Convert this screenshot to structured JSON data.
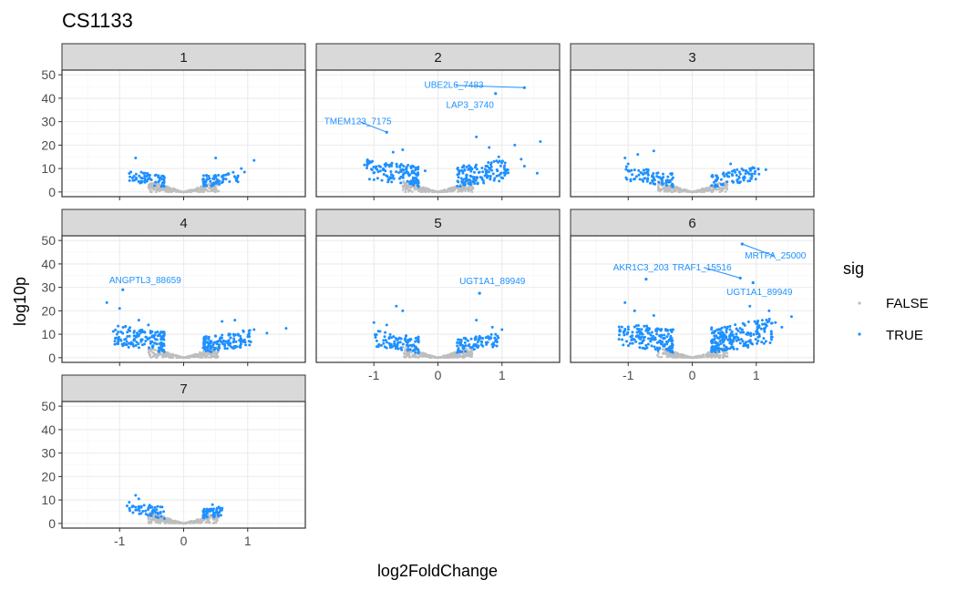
{
  "chart_data": {
    "type": "scatter",
    "title": "CS1133",
    "xlabel": "log2FoldChange",
    "ylabel": "log10p",
    "xlim": [
      -1.9,
      1.9
    ],
    "ylim": [
      -2,
      52
    ],
    "x_ticks": [
      -1,
      0,
      1
    ],
    "y_ticks": [
      0,
      10,
      20,
      30,
      40,
      50
    ],
    "grid": true,
    "legend": {
      "title": "sig",
      "position": "right",
      "entries": [
        {
          "label": "FALSE",
          "color": "#bebebe"
        },
        {
          "label": "TRUE",
          "color": "#1e90ff"
        }
      ]
    },
    "colors": {
      "FALSE": "#bebebe",
      "TRUE": "#1e90ff",
      "strip_bg": "#d9d9d9",
      "grid": "#ebebeb"
    },
    "facets": [
      {
        "label": "1",
        "spread": [
          0.85,
          0.85
        ],
        "height": [
          5,
          5
        ],
        "sig_count": [
          65,
          65
        ],
        "outliers": [
          [
            -0.75,
            14.5
          ],
          [
            0.5,
            14.5
          ],
          [
            0.9,
            10
          ],
          [
            1.1,
            13.5
          ],
          [
            0.95,
            8.5
          ]
        ],
        "labels": []
      },
      {
        "label": "2",
        "spread": [
          1.15,
          1.1
        ],
        "height": [
          9,
          9
        ],
        "sig_count": [
          140,
          140
        ],
        "outliers": [
          [
            -1.1,
            12
          ],
          [
            -0.7,
            17
          ],
          [
            -0.55,
            18
          ],
          [
            -0.2,
            9
          ],
          [
            0.6,
            23.5
          ],
          [
            0.8,
            19
          ],
          [
            1.3,
            14
          ],
          [
            1.35,
            11
          ],
          [
            1.55,
            8
          ],
          [
            1.6,
            21.5
          ],
          [
            1.2,
            20
          ],
          [
            0.95,
            15
          ]
        ],
        "labels": [
          {
            "text": "UBE2L6_7483",
            "x": 1.35,
            "y": 44.5,
            "tx": 0.25,
            "ty": 45.5
          },
          {
            "text": "LAP3_3740",
            "x": 0.9,
            "y": 42,
            "tx": 0.5,
            "ty": 37
          },
          {
            "text": "TMEM123_7175",
            "x": -0.8,
            "y": 25.5,
            "tx": -1.25,
            "ty": 30
          }
        ]
      },
      {
        "label": "3",
        "spread": [
          1.05,
          1.05
        ],
        "height": [
          6,
          6
        ],
        "sig_count": [
          85,
          85
        ],
        "outliers": [
          [
            -1.05,
            14.5
          ],
          [
            -0.85,
            16
          ],
          [
            -0.6,
            17.5
          ],
          [
            0.9,
            10
          ],
          [
            1.15,
            9.5
          ],
          [
            0.6,
            12
          ],
          [
            -1.0,
            12
          ]
        ],
        "labels": []
      },
      {
        "label": "4",
        "spread": [
          1.1,
          1.05
        ],
        "height": [
          9,
          7
        ],
        "sig_count": [
          150,
          140
        ],
        "outliers": [
          [
            -1.2,
            23.5
          ],
          [
            -1.0,
            21
          ],
          [
            -0.7,
            16
          ],
          [
            -0.55,
            14
          ],
          [
            0.8,
            16
          ],
          [
            1.1,
            12
          ],
          [
            1.3,
            10.5
          ],
          [
            1.6,
            12.5
          ],
          [
            0.6,
            15.5
          ]
        ],
        "labels": [
          {
            "text": "ANGPTL3_88659",
            "x": -0.95,
            "y": 29,
            "tx": -0.6,
            "ty": 33
          }
        ]
      },
      {
        "label": "5",
        "spread": [
          1.0,
          0.95
        ],
        "height": [
          7,
          6
        ],
        "sig_count": [
          95,
          85
        ],
        "outliers": [
          [
            -0.65,
            22
          ],
          [
            -0.55,
            20
          ],
          [
            -1.0,
            15
          ],
          [
            -0.8,
            14
          ],
          [
            0.6,
            16
          ],
          [
            0.9,
            10
          ],
          [
            1.0,
            12
          ],
          [
            0.85,
            13
          ],
          [
            0.65,
            27.5
          ],
          [
            0.9,
            7
          ]
        ],
        "labels": [
          {
            "text": "UGT1A1_89949",
            "x": 0.65,
            "y": 27.5,
            "tx": 0.85,
            "ty": 32.5
          }
        ]
      },
      {
        "label": "6",
        "spread": [
          1.15,
          1.25
        ],
        "height": [
          10,
          11
        ],
        "sig_count": [
          170,
          220
        ],
        "outliers": [
          [
            -1.05,
            23.5
          ],
          [
            -0.9,
            20
          ],
          [
            -0.6,
            18
          ],
          [
            1.3,
            15
          ],
          [
            1.4,
            13
          ],
          [
            1.55,
            17.5
          ],
          [
            1.2,
            20
          ],
          [
            0.9,
            22
          ],
          [
            0.95,
            32
          ],
          [
            0.78,
            48.5
          ]
        ],
        "labels": [
          {
            "text": "MRTFA_25000",
            "x": 0.78,
            "y": 48.5,
            "tx": 1.3,
            "ty": 43.5
          },
          {
            "text": "AKR1C3_203",
            "x": -0.72,
            "y": 33.5,
            "tx": -0.8,
            "ty": 38.5
          },
          {
            "text": "TRAF1_15516",
            "x": 0.75,
            "y": 34,
            "tx": 0.15,
            "ty": 38.5
          },
          {
            "text": "UGT1A1_89949",
            "x": 0.95,
            "y": 32,
            "tx": 1.05,
            "ty": 28
          }
        ]
      },
      {
        "label": "7",
        "spread": [
          0.9,
          0.6
        ],
        "height": [
          5,
          4
        ],
        "sig_count": [
          55,
          45
        ],
        "outliers": [
          [
            -0.75,
            12
          ],
          [
            -0.7,
            10.5
          ],
          [
            -0.85,
            9
          ],
          [
            0.45,
            8
          ],
          [
            0.55,
            7
          ],
          [
            0.6,
            6.5
          ]
        ],
        "labels": []
      }
    ]
  }
}
